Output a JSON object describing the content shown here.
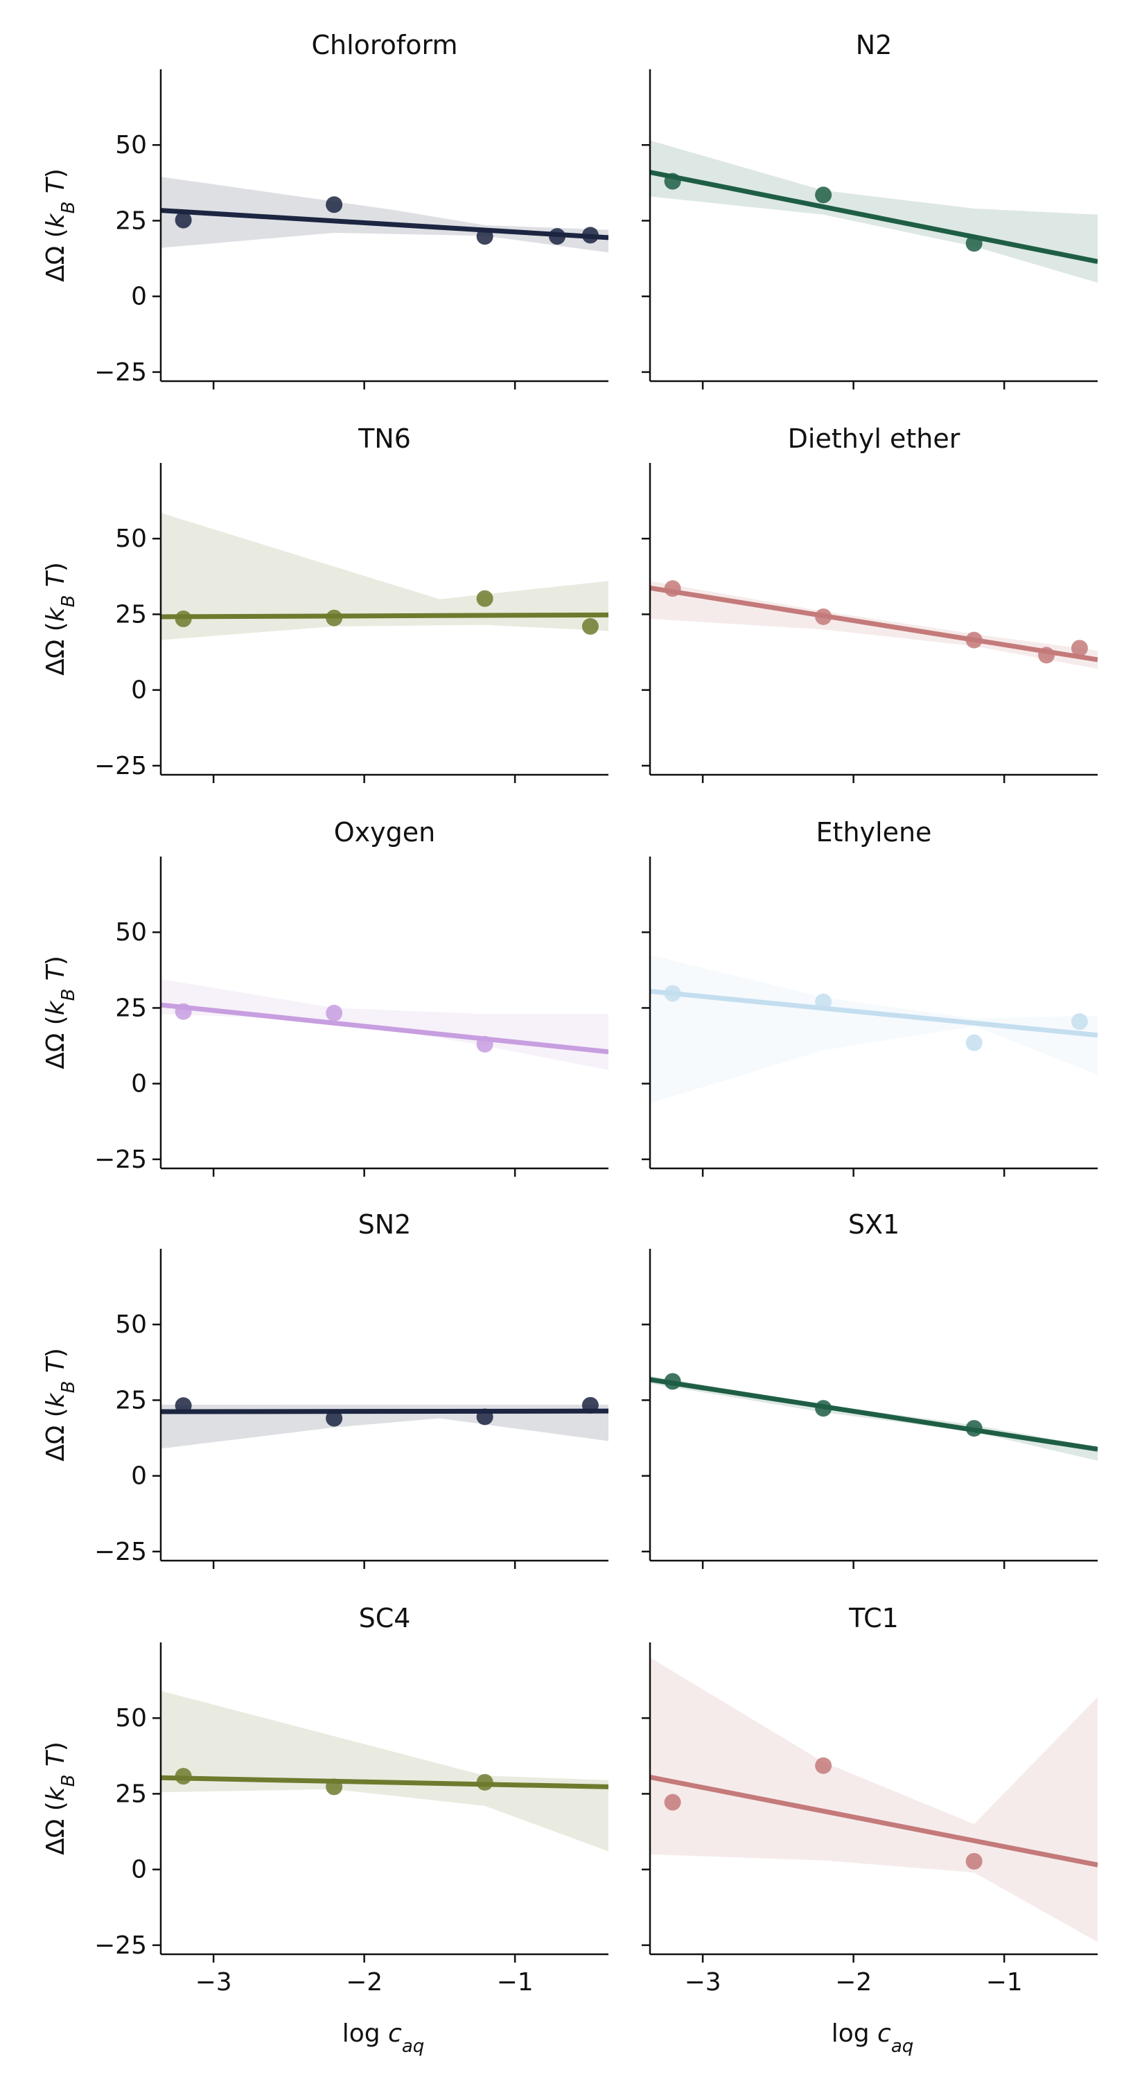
{
  "chart_data": {
    "type": "scatter",
    "layout": "facet grid, 5 rows x 2 columns, shared axes",
    "xlabel": "log c_aq",
    "ylabel": "ΔΩ (k_B T)",
    "xlim": [
      -3.35,
      -0.38
    ],
    "ylim": [
      -28,
      75
    ],
    "xticks": [
      -3,
      -2,
      -1
    ],
    "xtick_labels": [
      "−3",
      "−2",
      "−1"
    ],
    "yticks": [
      -25,
      0,
      25,
      50
    ],
    "ytick_labels": [
      "−25",
      "0",
      "25",
      "50"
    ],
    "grid": false,
    "legend": "none",
    "panels": [
      {
        "title": "Chloroform",
        "color": "#1c2541",
        "points": [
          [
            -3.2,
            25.2
          ],
          [
            -2.2,
            30.3
          ],
          [
            -1.2,
            19.8
          ],
          [
            -0.72,
            19.8
          ],
          [
            -0.5,
            20.2
          ]
        ],
        "fit": [
          [
            -3.35,
            28.4
          ],
          [
            -0.38,
            19.4
          ]
        ],
        "ci_upper": [
          [
            -3.35,
            39.5
          ],
          [
            -1.8,
            28.5
          ],
          [
            -1.2,
            23.5
          ],
          [
            -0.38,
            22.0
          ]
        ],
        "ci_lower": [
          [
            -3.35,
            16.0
          ],
          [
            -2.2,
            21.0
          ],
          [
            -1.2,
            20.0
          ],
          [
            -0.38,
            14.5
          ]
        ]
      },
      {
        "title": "N2",
        "color": "#1e5e45",
        "points": [
          [
            -3.2,
            38.0
          ],
          [
            -2.2,
            33.5
          ],
          [
            -1.2,
            17.5
          ]
        ],
        "fit": [
          [
            -3.35,
            41.0
          ],
          [
            -0.38,
            11.5
          ]
        ],
        "ci_upper": [
          [
            -3.35,
            51.5
          ],
          [
            -2.2,
            35.0
          ],
          [
            -1.2,
            29.0
          ],
          [
            -0.38,
            27.0
          ]
        ],
        "ci_lower": [
          [
            -3.35,
            33.0
          ],
          [
            -2.2,
            27.0
          ],
          [
            -1.2,
            16.5
          ],
          [
            -0.38,
            4.5
          ]
        ]
      },
      {
        "title": "TN6",
        "color": "#6e7b2e",
        "points": [
          [
            -3.2,
            23.5
          ],
          [
            -2.2,
            23.8
          ],
          [
            -1.2,
            30.2
          ],
          [
            -0.5,
            21.0
          ]
        ],
        "fit": [
          [
            -3.35,
            24.2
          ],
          [
            -0.38,
            24.8
          ]
        ],
        "ci_upper": [
          [
            -3.35,
            58.5
          ],
          [
            -1.5,
            30.0
          ],
          [
            -0.38,
            36.0
          ]
        ],
        "ci_lower": [
          [
            -3.35,
            16.5
          ],
          [
            -2.2,
            21.0
          ],
          [
            -1.2,
            21.5
          ],
          [
            -0.38,
            19.5
          ]
        ]
      },
      {
        "title": "Diethyl ether",
        "color": "#c47a7a",
        "points": [
          [
            -3.2,
            33.5
          ],
          [
            -2.2,
            24.2
          ],
          [
            -1.2,
            16.5
          ],
          [
            -0.72,
            11.5
          ],
          [
            -0.5,
            13.8
          ]
        ],
        "fit": [
          [
            -3.35,
            33.7
          ],
          [
            -0.38,
            10.0
          ]
        ],
        "ci_upper": [
          [
            -3.35,
            36.0
          ],
          [
            -2.2,
            26.0
          ],
          [
            -1.2,
            18.5
          ],
          [
            -0.38,
            13.0
          ]
        ],
        "ci_lower": [
          [
            -3.35,
            23.5
          ],
          [
            -2.2,
            20.0
          ],
          [
            -1.2,
            14.5
          ],
          [
            -0.38,
            7.0
          ]
        ]
      },
      {
        "title": "Oxygen",
        "color": "#c79ee0",
        "points": [
          [
            -3.2,
            23.8
          ],
          [
            -2.2,
            23.3
          ],
          [
            -1.2,
            13.0
          ]
        ],
        "fit": [
          [
            -3.35,
            26.0
          ],
          [
            -0.38,
            10.5
          ]
        ],
        "ci_upper": [
          [
            -3.35,
            34.5
          ],
          [
            -2.2,
            25.0
          ],
          [
            -1.2,
            23.0
          ],
          [
            -0.38,
            23.0
          ]
        ],
        "ci_lower": [
          [
            -3.35,
            23.0
          ],
          [
            -2.2,
            21.0
          ],
          [
            -1.2,
            12.5
          ],
          [
            -0.38,
            4.5
          ]
        ]
      },
      {
        "title": "Ethylene",
        "color": "#c4def0",
        "points": [
          [
            -3.2,
            29.8
          ],
          [
            -2.2,
            27.0
          ],
          [
            -1.2,
            13.5
          ],
          [
            -0.5,
            20.5
          ]
        ],
        "fit": [
          [
            -3.35,
            30.5
          ],
          [
            -0.38,
            16.0
          ]
        ],
        "ci_upper": [
          [
            -3.35,
            42.5
          ],
          [
            -2.2,
            28.5
          ],
          [
            -1.2,
            21.5
          ],
          [
            -0.38,
            22.5
          ]
        ],
        "ci_lower": [
          [
            -3.35,
            -6.5
          ],
          [
            -2.2,
            11.0
          ],
          [
            -1.2,
            19.0
          ],
          [
            -0.38,
            3.0
          ]
        ]
      },
      {
        "title": "SN2",
        "color": "#1c2541",
        "points": [
          [
            -3.2,
            23.2
          ],
          [
            -2.2,
            19.0
          ],
          [
            -1.2,
            19.5
          ],
          [
            -0.5,
            23.3
          ]
        ],
        "fit": [
          [
            -3.35,
            21.2
          ],
          [
            -0.38,
            21.4
          ]
        ],
        "ci_upper": [
          [
            -3.35,
            23.5
          ],
          [
            -1.8,
            23.5
          ],
          [
            -0.38,
            23.5
          ]
        ],
        "ci_lower": [
          [
            -3.35,
            9.0
          ],
          [
            -2.2,
            16.0
          ],
          [
            -1.5,
            19.0
          ],
          [
            -0.38,
            11.5
          ]
        ]
      },
      {
        "title": "SX1",
        "color": "#1e5e45",
        "points": [
          [
            -3.2,
            31.2
          ],
          [
            -2.2,
            22.3
          ],
          [
            -1.2,
            15.7
          ]
        ],
        "fit": [
          [
            -3.35,
            31.8
          ],
          [
            -0.38,
            8.8
          ]
        ],
        "ci_upper": [
          [
            -3.35,
            33.0
          ],
          [
            -2.2,
            23.5
          ],
          [
            -1.2,
            16.8
          ],
          [
            -0.38,
            9.5
          ]
        ],
        "ci_lower": [
          [
            -3.35,
            30.5
          ],
          [
            -2.2,
            21.0
          ],
          [
            -1.2,
            14.5
          ],
          [
            -0.38,
            5.0
          ]
        ]
      },
      {
        "title": "SC4",
        "color": "#6e7b2e",
        "points": [
          [
            -3.2,
            30.8
          ],
          [
            -2.2,
            27.3
          ],
          [
            -1.2,
            28.8
          ]
        ],
        "fit": [
          [
            -3.35,
            30.3
          ],
          [
            -0.38,
            27.3
          ]
        ],
        "ci_upper": [
          [
            -3.35,
            59.0
          ],
          [
            -1.2,
            31.0
          ],
          [
            -0.38,
            29.5
          ]
        ],
        "ci_lower": [
          [
            -3.35,
            25.5
          ],
          [
            -2.2,
            26.5
          ],
          [
            -1.2,
            21.0
          ],
          [
            -0.38,
            6.0
          ]
        ]
      },
      {
        "title": "TC1",
        "color": "#c47a7a",
        "points": [
          [
            -3.2,
            22.2
          ],
          [
            -2.2,
            34.3
          ],
          [
            -1.2,
            2.7
          ]
        ],
        "fit": [
          [
            -3.35,
            30.5
          ],
          [
            -0.38,
            1.5
          ]
        ],
        "ci_upper": [
          [
            -3.35,
            70.0
          ],
          [
            -2.2,
            35.5
          ],
          [
            -1.2,
            15.0
          ],
          [
            -0.38,
            57.0
          ]
        ],
        "ci_lower": [
          [
            -3.35,
            5.0
          ],
          [
            -2.2,
            3.0
          ],
          [
            -1.2,
            -1.0
          ],
          [
            -0.38,
            -24.0
          ]
        ]
      }
    ]
  }
}
